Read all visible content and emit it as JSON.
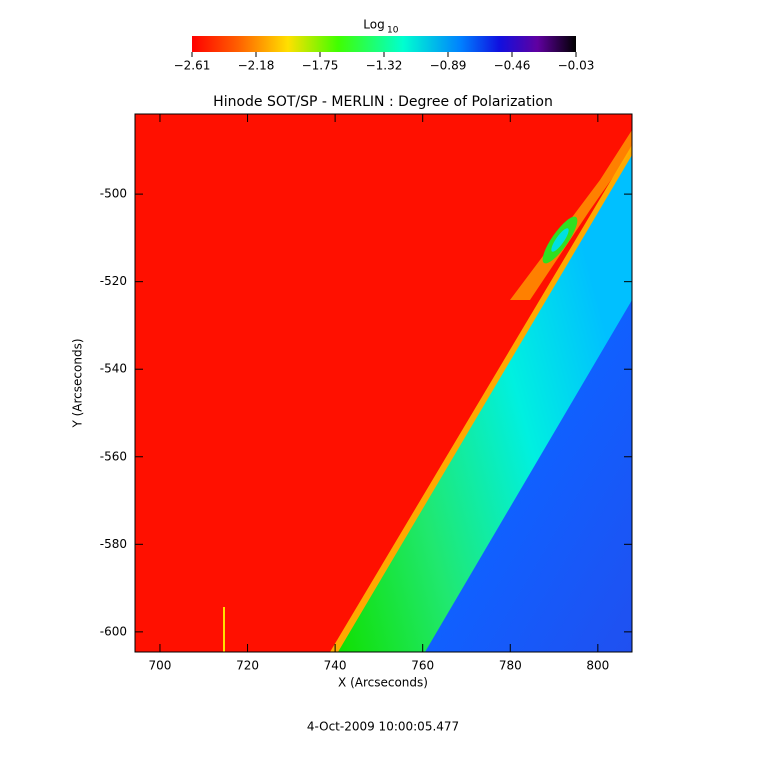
{
  "chart_data": {
    "type": "image",
    "title": "Hinode SOT/SP - MERLIN : Degree of Polarization",
    "xlabel": "X (Arcseconds)",
    "ylabel": "Y (Arcseconds)",
    "date": "4-Oct-2009 10:00:05.477",
    "xlim": [
      694.3,
      807.8
    ],
    "ylim": [
      -604.6,
      -481.7
    ],
    "xticks": [
      700,
      720,
      740,
      760,
      780,
      800
    ],
    "yticks": [
      -600,
      -580,
      -560,
      -540,
      -520,
      -500
    ],
    "colorbar": {
      "label": "Log",
      "label_subscript": "10",
      "lim": [
        -2.61,
        -0.03
      ],
      "ticks": [
        {
          "value": -2.61,
          "label": "−2.61"
        },
        {
          "value": -2.18,
          "label": "−2.18"
        },
        {
          "value": -1.75,
          "label": "−1.75"
        },
        {
          "value": -1.32,
          "label": "−1.32"
        },
        {
          "value": -0.89,
          "label": "−0.89"
        },
        {
          "value": -0.46,
          "label": "−0.46"
        },
        {
          "value": -0.03,
          "label": "−0.03"
        }
      ]
    }
  }
}
